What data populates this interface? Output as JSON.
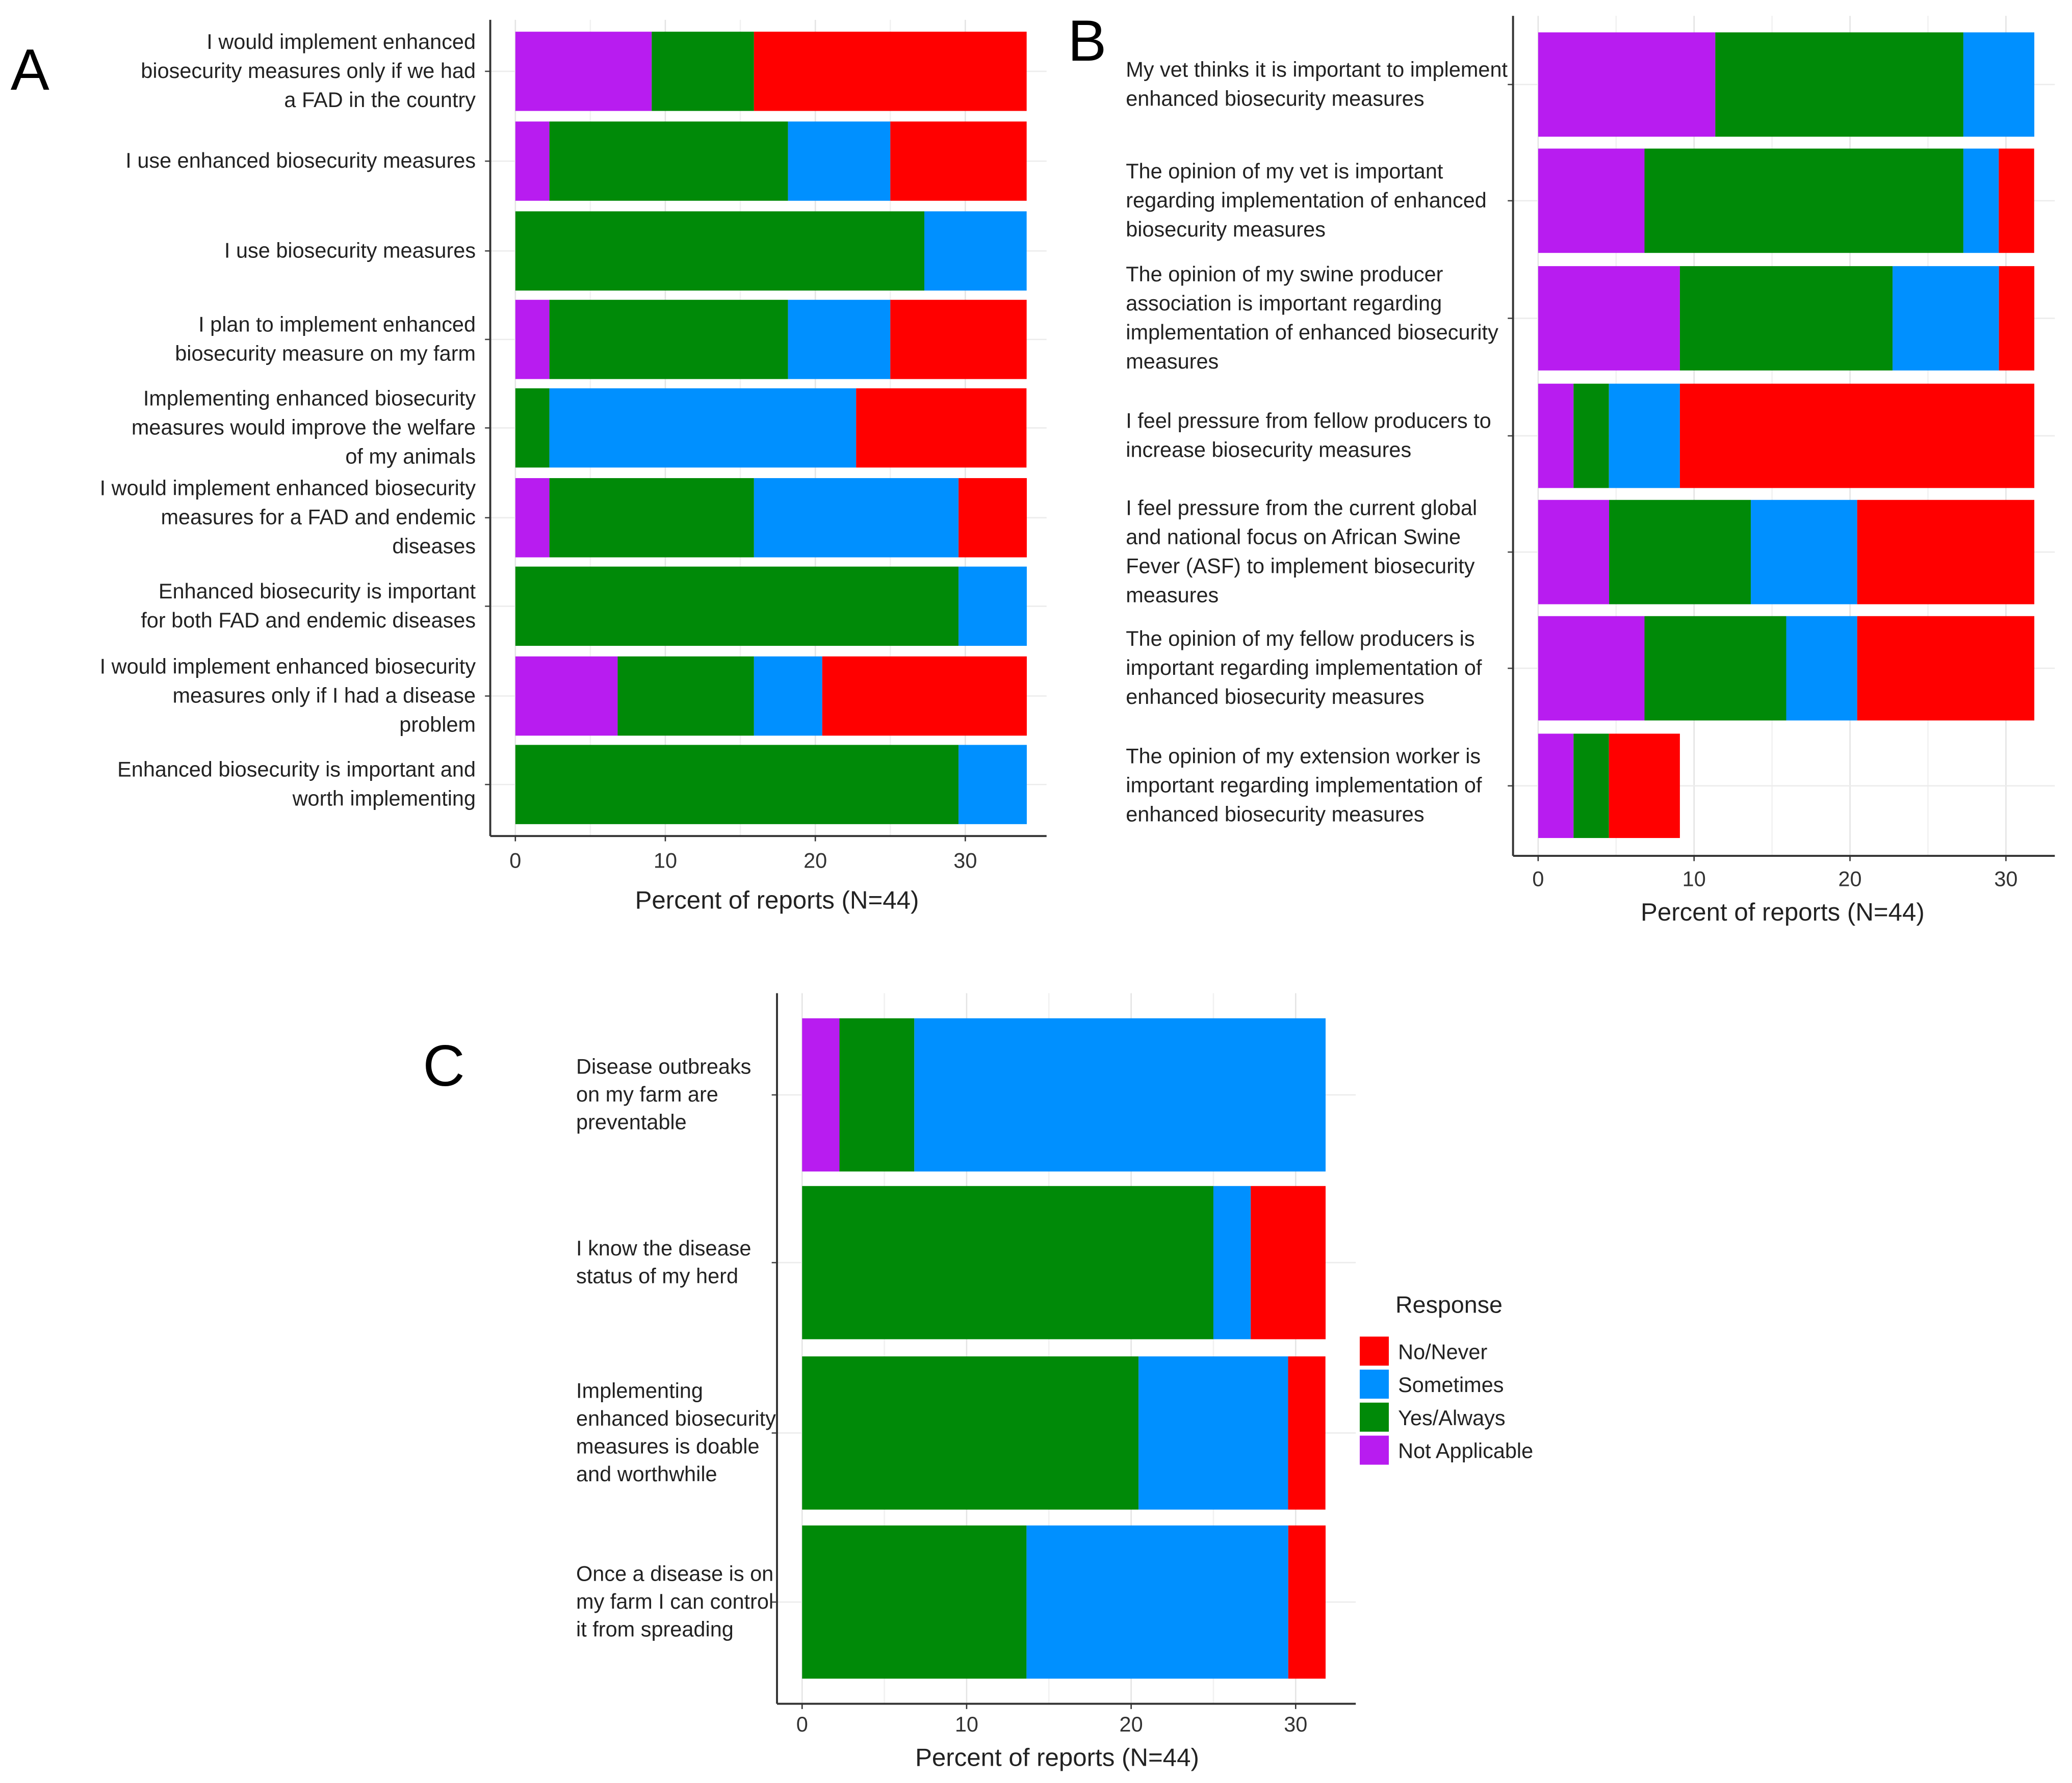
{
  "colors": {
    "Not Applicable": "#b81cf0",
    "Yes/Always": "#008a08",
    "Sometimes": "#0090ff",
    "No/Never": "#ff0000"
  },
  "legend": {
    "title": "Response",
    "items": [
      "No/Never",
      "Sometimes",
      "Yes/Always",
      "Not Applicable"
    ]
  },
  "chart_data": [
    {
      "type": "bar",
      "orientation": "horizontal-stacked",
      "panel": "A",
      "xlabel": "Percent of reports (N=44)",
      "xlim": [
        0,
        34
      ],
      "xticks": [
        "0",
        "10",
        "20",
        "30"
      ],
      "categories": [
        [
          "I would implement enhanced",
          "biosecurity measures only if we had",
          "a FAD in the country"
        ],
        [
          "I use enhanced biosecurity measures"
        ],
        [
          "I use biosecurity measures"
        ],
        [
          "I plan to implement enhanced",
          "biosecurity measure on my farm"
        ],
        [
          "Implementing enhanced biosecurity",
          "measures would improve the welfare",
          "of my animals"
        ],
        [
          "I would implement enhanced biosecurity",
          "measures for a FAD and endemic",
          "diseases"
        ],
        [
          "Enhanced biosecurity is important",
          "for both FAD and endemic diseases"
        ],
        [
          "I would implement enhanced biosecurity",
          "measures only if I had a disease",
          "problem"
        ],
        [
          "Enhanced biosecurity is important and",
          "worth implementing"
        ]
      ],
      "series": [
        {
          "name": "Not Applicable",
          "values": [
            9.09,
            2.27,
            0,
            2.27,
            0,
            2.27,
            0,
            6.82,
            0
          ]
        },
        {
          "name": "Yes/Always",
          "values": [
            6.82,
            15.91,
            27.27,
            15.91,
            2.27,
            13.64,
            29.55,
            9.09,
            29.55
          ]
        },
        {
          "name": "Sometimes",
          "values": [
            0,
            6.82,
            6.82,
            6.82,
            20.45,
            13.64,
            4.55,
            4.55,
            4.55
          ]
        },
        {
          "name": "No/Never",
          "values": [
            18.18,
            9.09,
            0,
            9.09,
            11.36,
            4.55,
            0,
            13.64,
            0
          ]
        }
      ]
    },
    {
      "type": "bar",
      "orientation": "horizontal-stacked",
      "panel": "B",
      "xlabel": "Percent of reports (N=44)",
      "xlim": [
        0,
        33
      ],
      "xticks": [
        "0",
        "10",
        "20",
        "30"
      ],
      "categories": [
        [
          "My vet thinks it is important to implement",
          "enhanced biosecurity measures"
        ],
        [
          "The opinion of my vet is important",
          "regarding implementation of enhanced",
          "biosecurity measures"
        ],
        [
          "The opinion of my swine producer",
          "association is important regarding",
          "implementation of enhanced biosecurity",
          "measures"
        ],
        [
          "I feel pressure from fellow producers to",
          "increase biosecurity measures"
        ],
        [
          "I feel pressure from the current global",
          "and national focus on African Swine",
          "Fever (ASF) to implement biosecurity",
          "measures"
        ],
        [
          "The opinion of my fellow producers is",
          "important regarding implementation of",
          "enhanced biosecurity measures"
        ],
        [
          "The opinion of my extension worker is",
          "important regarding implementation of",
          "enhanced biosecurity measures"
        ]
      ],
      "series": [
        {
          "name": "Not Applicable",
          "values": [
            11.36,
            6.82,
            9.09,
            2.27,
            4.55,
            6.82,
            2.27
          ]
        },
        {
          "name": "Yes/Always",
          "values": [
            15.91,
            20.45,
            13.64,
            2.27,
            9.09,
            9.09,
            2.27
          ]
        },
        {
          "name": "Sometimes",
          "values": [
            4.55,
            2.27,
            6.82,
            4.55,
            6.82,
            4.55,
            0
          ]
        },
        {
          "name": "No/Never",
          "values": [
            0,
            2.27,
            2.27,
            22.73,
            11.36,
            11.36,
            4.55
          ]
        }
      ]
    },
    {
      "type": "bar",
      "orientation": "horizontal-stacked",
      "panel": "C",
      "xlabel": "Percent of reports (N=44)",
      "xlim": [
        0,
        33
      ],
      "xticks": [
        "0",
        "10",
        "20",
        "30"
      ],
      "categories": [
        [
          "Disease outbreaks",
          "on my farm are",
          "preventable"
        ],
        [
          "I know the disease",
          "status of my herd"
        ],
        [
          "Implementing",
          "enhanced biosecurity",
          "measures is doable",
          "and worthwhile"
        ],
        [
          "Once a disease is on",
          "my farm I can control",
          "it from spreading"
        ]
      ],
      "series": [
        {
          "name": "Not Applicable",
          "values": [
            2.27,
            0,
            0,
            0
          ]
        },
        {
          "name": "Yes/Always",
          "values": [
            4.55,
            25.0,
            20.45,
            13.64
          ]
        },
        {
          "name": "Sometimes",
          "values": [
            25.0,
            2.27,
            9.09,
            15.91
          ]
        },
        {
          "name": "No/Never",
          "values": [
            0,
            4.55,
            2.27,
            2.27
          ]
        }
      ]
    }
  ]
}
